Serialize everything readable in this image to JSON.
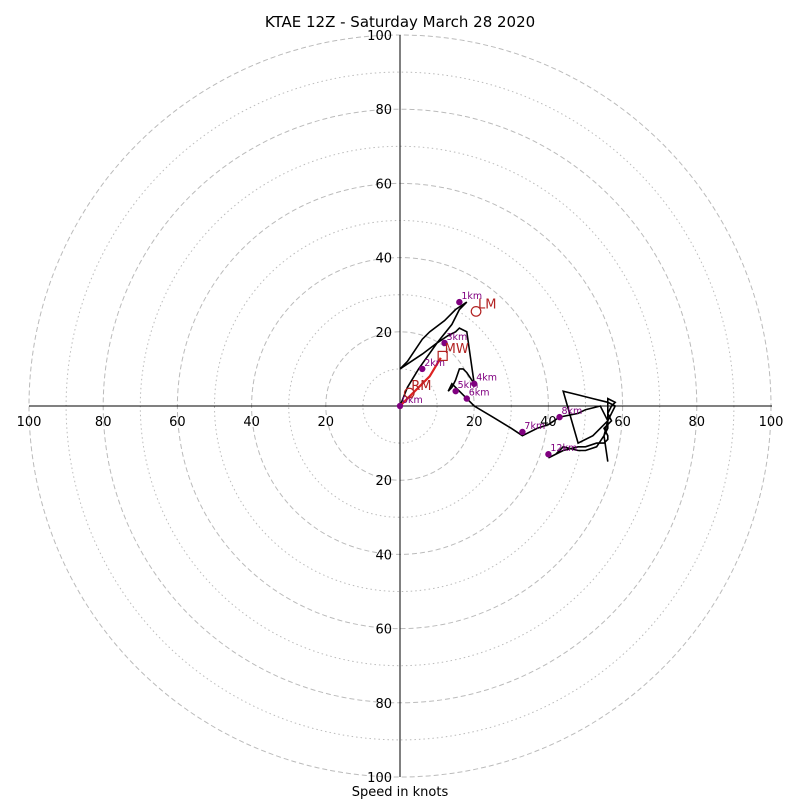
{
  "chart_data": {
    "type": "hodograph",
    "title": "KTAE 12Z - Saturday March 28 2020",
    "xlabel": "Speed in knots",
    "radial_range": [
      0,
      100
    ],
    "major_rings": [
      20,
      40,
      60,
      80,
      100
    ],
    "minor_rings": [
      10,
      30,
      50,
      70,
      90
    ],
    "tick_labels": [
      "20",
      "40",
      "60",
      "80",
      "100"
    ],
    "axis_range": [
      -100,
      100
    ],
    "grid": true,
    "colors": {
      "hodograph": "#000000",
      "height_markers": "#800080",
      "motion_markers": "#b22222",
      "mean_wind_shear": "#dd2222",
      "grid": "#bbbbbb"
    },
    "hodograph_u": [
      0,
      2,
      5,
      10,
      14,
      16,
      18,
      15,
      12,
      8,
      6,
      4,
      2,
      0,
      6,
      10,
      13,
      15,
      16,
      18,
      20,
      18,
      17,
      16,
      15,
      14,
      13,
      14,
      15,
      16,
      18,
      20,
      25,
      30,
      33,
      37,
      40,
      43,
      48,
      50,
      54,
      56,
      55,
      53,
      50,
      48,
      44,
      43,
      42,
      40,
      44,
      48,
      50,
      53,
      55,
      56,
      56,
      55,
      57,
      56,
      57,
      58,
      56,
      56,
      54,
      52,
      48,
      44,
      48,
      52,
      56,
      58,
      57,
      56,
      56,
      55,
      56
    ],
    "hodograph_v": [
      0,
      5,
      10,
      17,
      22,
      26,
      28,
      26,
      23,
      20,
      18,
      15,
      12,
      10,
      14,
      17,
      19,
      20,
      21,
      20,
      6,
      9,
      10,
      10,
      7,
      5,
      4,
      6,
      5,
      4,
      2,
      0,
      -3,
      -6,
      -8,
      -6,
      -5,
      -3,
      -2,
      -1,
      0,
      -4,
      -8,
      -11,
      -12,
      -12,
      -11,
      -12,
      -13,
      -14,
      -12,
      -11,
      -11,
      -10,
      -10,
      -9,
      -8,
      -6,
      -4,
      -2,
      0,
      1,
      2,
      -4,
      -6,
      -8,
      -10,
      4,
      3,
      2,
      1,
      0,
      -2,
      -4,
      -6,
      -8,
      -15
    ],
    "height_markers": [
      {
        "label": "1km",
        "u": 16,
        "v": 28
      },
      {
        "label": "3km",
        "u": 12,
        "v": 17
      },
      {
        "label": "2km",
        "u": 6,
        "v": 10
      },
      {
        "label": "4km",
        "u": 20,
        "v": 6
      },
      {
        "label": "5km",
        "u": 15,
        "v": 4
      },
      {
        "label": "6km",
        "u": 18,
        "v": 2
      },
      {
        "label": "7km",
        "u": 33,
        "v": -7
      },
      {
        "label": "8km",
        "u": 43,
        "v": -3
      },
      {
        "label": "12km",
        "u": 40,
        "v": -13
      },
      {
        "label": "0km",
        "u": 0,
        "v": 0
      }
    ],
    "storm_motions": [
      {
        "label": "LM",
        "u": 20.5,
        "v": 25.5,
        "shape": "circle"
      },
      {
        "label": "MW",
        "u": 11.5,
        "v": 13.5,
        "shape": "square"
      },
      {
        "label": "RM",
        "u": 2.5,
        "v": 3.5,
        "shape": "circle"
      }
    ],
    "mean_wind_shear_u": [
      0,
      4,
      8,
      11
    ],
    "mean_wind_shear_v": [
      0,
      4,
      8,
      13
    ]
  }
}
